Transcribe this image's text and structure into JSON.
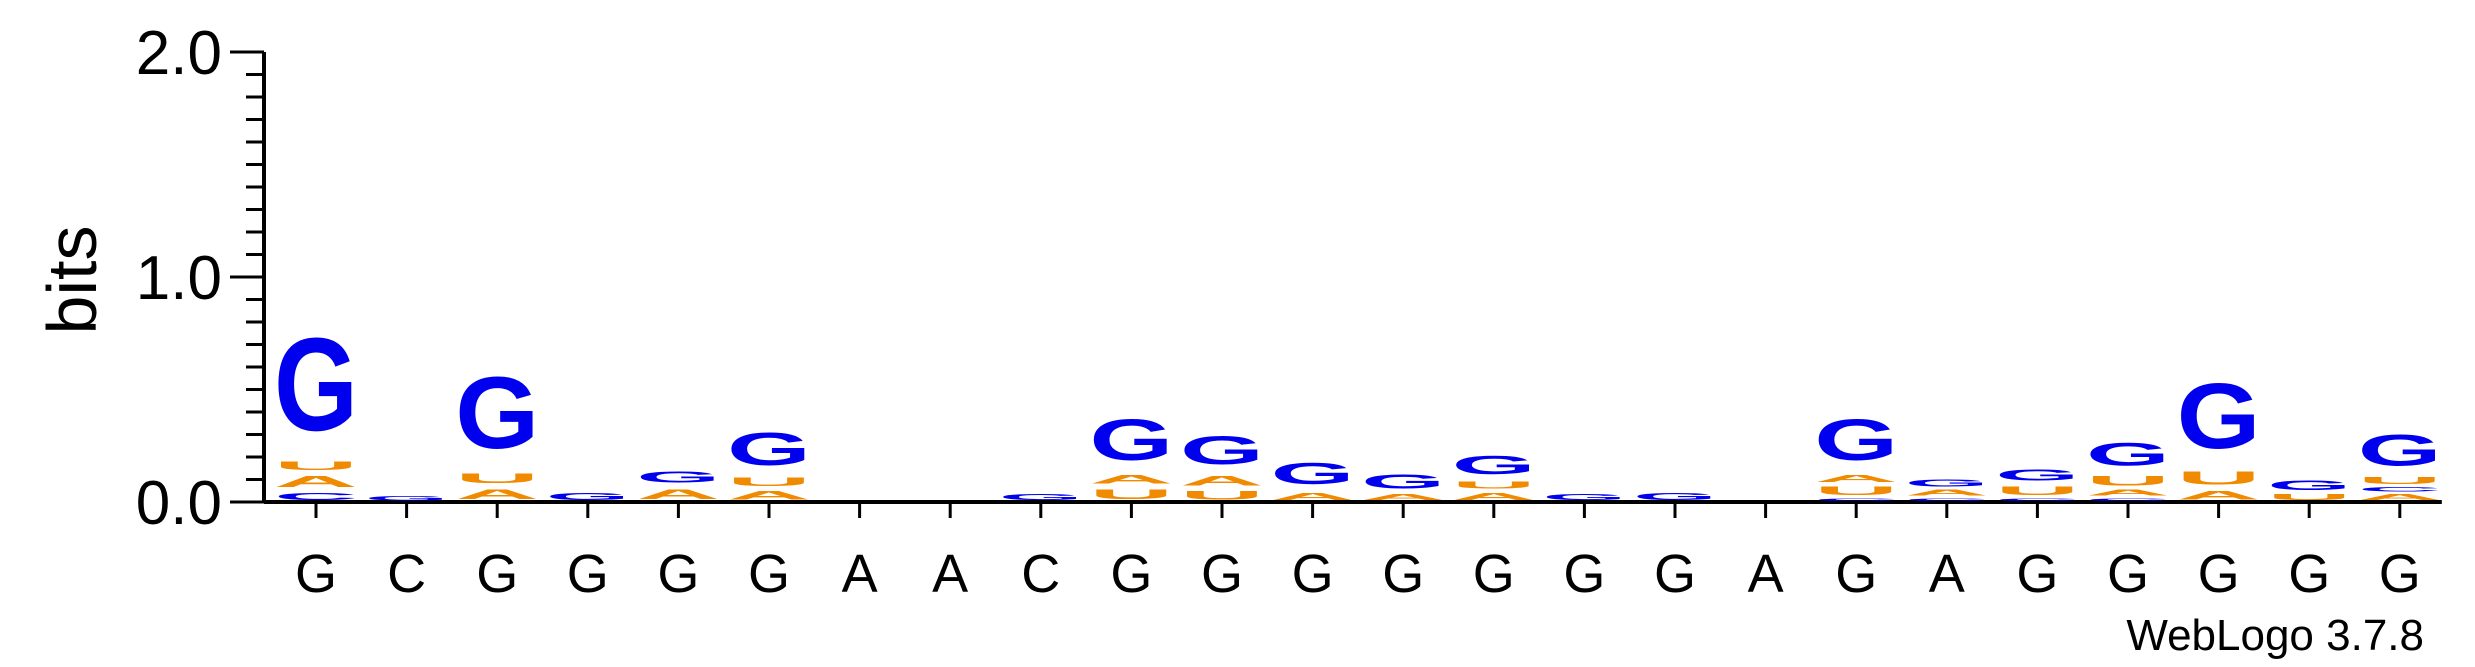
{
  "chart_data": {
    "type": "sequence-logo",
    "ylabel": "bits",
    "ylim": [
      0,
      2.0
    ],
    "yticks": [
      "0.0",
      "1.0",
      "2.0"
    ],
    "minor_tick_step": 0.1,
    "credit": "WebLogo 3.7.8",
    "colors": {
      "G": "#0000ee",
      "A": "#f08a00",
      "U": "#f08a00",
      "C": "#0000ee"
    },
    "positions": [
      {
        "label": "G",
        "stack": [
          {
            "letter": "C",
            "bits": 0.05
          },
          {
            "letter": "A",
            "bits": 0.08
          },
          {
            "letter": "U",
            "bits": 0.06
          },
          {
            "letter": "G",
            "bits": 0.66
          }
        ]
      },
      {
        "label": "C",
        "stack": [
          {
            "letter": "G",
            "bits": 0.03
          }
        ]
      },
      {
        "label": "G",
        "stack": [
          {
            "letter": "A",
            "bits": 0.07
          },
          {
            "letter": "U",
            "bits": 0.07
          },
          {
            "letter": "G",
            "bits": 0.51
          }
        ]
      },
      {
        "label": "G",
        "stack": [
          {
            "letter": "G",
            "bits": 0.05
          }
        ]
      },
      {
        "label": "G",
        "stack": [
          {
            "letter": "A",
            "bits": 0.07
          },
          {
            "letter": "G",
            "bits": 0.08
          }
        ]
      },
      {
        "label": "G",
        "stack": [
          {
            "letter": "A",
            "bits": 0.06
          },
          {
            "letter": "U",
            "bits": 0.06
          },
          {
            "letter": "G",
            "bits": 0.23
          }
        ]
      },
      {
        "label": "A",
        "stack": []
      },
      {
        "label": "A",
        "stack": []
      },
      {
        "label": "C",
        "stack": [
          {
            "letter": "G",
            "bits": 0.04
          }
        ]
      },
      {
        "label": "G",
        "stack": [
          {
            "letter": "U",
            "bits": 0.07
          },
          {
            "letter": "A",
            "bits": 0.06
          },
          {
            "letter": "G",
            "bits": 0.29
          }
        ]
      },
      {
        "label": "G",
        "stack": [
          {
            "letter": "U",
            "bits": 0.06
          },
          {
            "letter": "A",
            "bits": 0.07
          },
          {
            "letter": "G",
            "bits": 0.2
          }
        ]
      },
      {
        "label": "G",
        "stack": [
          {
            "letter": "A",
            "bits": 0.05
          },
          {
            "letter": "G",
            "bits": 0.15
          }
        ]
      },
      {
        "label": "G",
        "stack": [
          {
            "letter": "A",
            "bits": 0.04
          },
          {
            "letter": "G",
            "bits": 0.1
          }
        ]
      },
      {
        "label": "G",
        "stack": [
          {
            "letter": "A",
            "bits": 0.05
          },
          {
            "letter": "U",
            "bits": 0.05
          },
          {
            "letter": "G",
            "bits": 0.13
          }
        ]
      },
      {
        "label": "G",
        "stack": [
          {
            "letter": "G",
            "bits": 0.04
          }
        ]
      },
      {
        "label": "G",
        "stack": [
          {
            "letter": "G",
            "bits": 0.05
          }
        ]
      },
      {
        "label": "A",
        "stack": []
      },
      {
        "label": "G",
        "stack": [
          {
            "letter": "C",
            "bits": 0.02
          },
          {
            "letter": "U",
            "bits": 0.06
          },
          {
            "letter": "A",
            "bits": 0.05
          },
          {
            "letter": "G",
            "bits": 0.29
          }
        ]
      },
      {
        "label": "A",
        "stack": [
          {
            "letter": "C",
            "bits": 0.02
          },
          {
            "letter": "A",
            "bits": 0.04
          },
          {
            "letter": "G",
            "bits": 0.05
          }
        ]
      },
      {
        "label": "G",
        "stack": [
          {
            "letter": "C",
            "bits": 0.02
          },
          {
            "letter": "U",
            "bits": 0.06
          },
          {
            "letter": "G",
            "bits": 0.08
          }
        ]
      },
      {
        "label": "G",
        "stack": [
          {
            "letter": "C",
            "bits": 0.02
          },
          {
            "letter": "A",
            "bits": 0.04
          },
          {
            "letter": "U",
            "bits": 0.07
          },
          {
            "letter": "G",
            "bits": 0.16
          }
        ]
      },
      {
        "label": "G",
        "stack": [
          {
            "letter": "A",
            "bits": 0.06
          },
          {
            "letter": "U",
            "bits": 0.09
          },
          {
            "letter": "G",
            "bits": 0.46
          }
        ]
      },
      {
        "label": "G",
        "stack": [
          {
            "letter": "U",
            "bits": 0.04
          },
          {
            "letter": "G",
            "bits": 0.07
          }
        ]
      },
      {
        "label": "G",
        "stack": [
          {
            "letter": "A",
            "bits": 0.04
          },
          {
            "letter": "C",
            "bits": 0.03
          },
          {
            "letter": "U",
            "bits": 0.05
          },
          {
            "letter": "G",
            "bits": 0.22
          }
        ]
      }
    ]
  }
}
